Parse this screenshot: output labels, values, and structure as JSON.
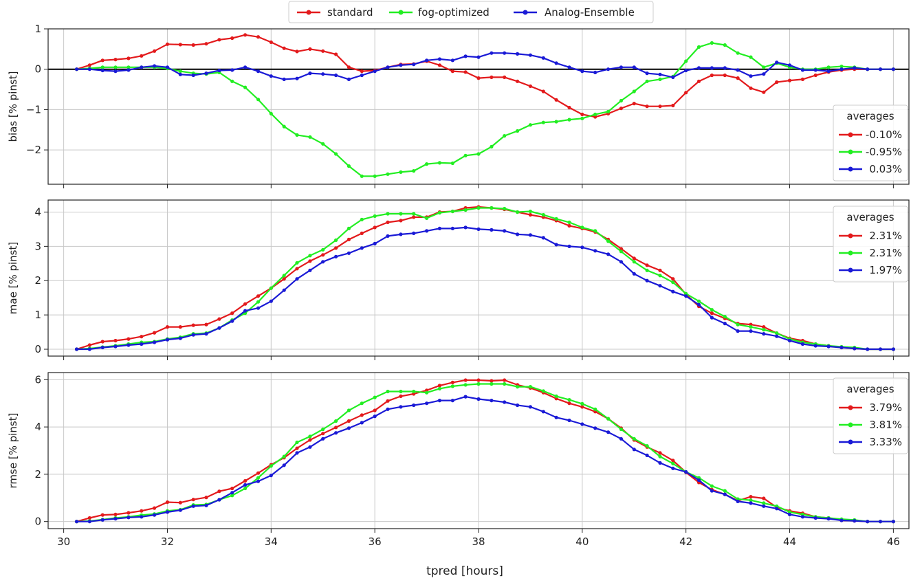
{
  "chart_data": [
    {
      "type": "line",
      "ylabel": "bias [% pinst]",
      "xlim": [
        29.7,
        46.3
      ],
      "ylim": [
        -2.85,
        1.0
      ],
      "yticks": [
        -2,
        -1,
        0,
        1
      ],
      "zero_line": true,
      "legend": {
        "title": "averages",
        "position": "lower-right",
        "entries": [
          "-0.10%",
          "-0.95%",
          "0.03%"
        ]
      },
      "x": [
        30.25,
        30.5,
        30.75,
        31.0,
        31.25,
        31.5,
        31.75,
        32.0,
        32.25,
        32.5,
        32.75,
        33.0,
        33.25,
        33.5,
        33.75,
        34.0,
        34.25,
        34.5,
        34.75,
        35.0,
        35.25,
        35.5,
        35.75,
        36.0,
        36.25,
        36.5,
        36.75,
        37.0,
        37.25,
        37.5,
        37.75,
        38.0,
        38.25,
        38.5,
        38.75,
        39.0,
        39.25,
        39.5,
        39.75,
        40.0,
        40.25,
        40.5,
        40.75,
        41.0,
        41.25,
        41.5,
        41.75,
        42.0,
        42.25,
        42.5,
        42.75,
        43.0,
        43.25,
        43.5,
        43.75,
        44.0,
        44.25,
        44.5,
        44.75,
        45.0,
        45.25,
        45.5,
        45.75,
        46.0
      ],
      "series": [
        {
          "color": "#e31a1c",
          "values": [
            0.0,
            0.1,
            0.22,
            0.24,
            0.27,
            0.33,
            0.45,
            0.62,
            0.61,
            0.6,
            0.63,
            0.73,
            0.77,
            0.85,
            0.8,
            0.67,
            0.52,
            0.44,
            0.5,
            0.45,
            0.37,
            0.05,
            -0.05,
            -0.03,
            0.05,
            0.12,
            0.13,
            0.2,
            0.1,
            -0.05,
            -0.07,
            -0.22,
            -0.2,
            -0.2,
            -0.3,
            -0.42,
            -0.55,
            -0.76,
            -0.95,
            -1.12,
            -1.18,
            -1.1,
            -0.97,
            -0.85,
            -0.92,
            -0.92,
            -0.9,
            -0.58,
            -0.3,
            -0.15,
            -0.15,
            -0.22,
            -0.47,
            -0.57,
            -0.32,
            -0.28,
            -0.25,
            -0.15,
            -0.07,
            -0.02,
            0.0,
            0.0,
            0.0,
            0.0
          ]
        },
        {
          "color": "#22ee22",
          "values": [
            0.0,
            0.02,
            0.05,
            0.05,
            0.05,
            0.05,
            0.05,
            0.02,
            -0.05,
            -0.1,
            -0.12,
            -0.08,
            -0.3,
            -0.45,
            -0.75,
            -1.1,
            -1.42,
            -1.63,
            -1.68,
            -1.85,
            -2.1,
            -2.4,
            -2.65,
            -2.65,
            -2.6,
            -2.55,
            -2.52,
            -2.35,
            -2.32,
            -2.33,
            -2.14,
            -2.1,
            -1.92,
            -1.65,
            -1.53,
            -1.38,
            -1.32,
            -1.3,
            -1.25,
            -1.22,
            -1.12,
            -1.05,
            -0.78,
            -0.55,
            -0.3,
            -0.25,
            -0.18,
            0.2,
            0.55,
            0.65,
            0.6,
            0.4,
            0.3,
            0.05,
            0.15,
            0.05,
            0.0,
            0.0,
            0.05,
            0.07,
            0.05,
            0.0,
            0.0,
            0.0
          ]
        },
        {
          "color": "#1a1ad6",
          "values": [
            0.0,
            0.0,
            -0.03,
            -0.05,
            -0.02,
            0.05,
            0.08,
            0.05,
            -0.13,
            -0.15,
            -0.1,
            -0.03,
            -0.02,
            0.05,
            -0.05,
            -0.17,
            -0.25,
            -0.23,
            -0.1,
            -0.12,
            -0.15,
            -0.25,
            -0.15,
            -0.05,
            0.05,
            0.1,
            0.12,
            0.22,
            0.25,
            0.22,
            0.32,
            0.3,
            0.4,
            0.4,
            0.38,
            0.35,
            0.28,
            0.15,
            0.05,
            -0.05,
            -0.08,
            0.0,
            0.05,
            0.05,
            -0.1,
            -0.13,
            -0.2,
            -0.03,
            0.03,
            0.03,
            0.03,
            -0.02,
            -0.17,
            -0.12,
            0.17,
            0.1,
            -0.02,
            -0.02,
            -0.05,
            0.0,
            0.03,
            0.0,
            0.0,
            0.0
          ]
        }
      ]
    },
    {
      "type": "line",
      "ylabel": "mae [% pinst]",
      "xlim": [
        29.7,
        46.3
      ],
      "ylim": [
        -0.2,
        4.35
      ],
      "yticks": [
        0,
        1,
        2,
        3,
        4
      ],
      "legend": {
        "title": "averages",
        "position": "upper-right",
        "entries": [
          "2.31%",
          "2.31%",
          "1.97%"
        ]
      },
      "x": [
        30.25,
        30.5,
        30.75,
        31.0,
        31.25,
        31.5,
        31.75,
        32.0,
        32.25,
        32.5,
        32.75,
        33.0,
        33.25,
        33.5,
        33.75,
        34.0,
        34.25,
        34.5,
        34.75,
        35.0,
        35.25,
        35.5,
        35.75,
        36.0,
        36.25,
        36.5,
        36.75,
        37.0,
        37.25,
        37.5,
        37.75,
        38.0,
        38.25,
        38.5,
        38.75,
        39.0,
        39.25,
        39.5,
        39.75,
        40.0,
        40.25,
        40.5,
        40.75,
        41.0,
        41.25,
        41.5,
        41.75,
        42.0,
        42.25,
        42.5,
        42.75,
        43.0,
        43.25,
        43.5,
        43.75,
        44.0,
        44.25,
        44.5,
        44.75,
        45.0,
        45.25,
        45.5,
        45.75,
        46.0
      ],
      "series": [
        {
          "color": "#e31a1c",
          "values": [
            0.0,
            0.12,
            0.22,
            0.25,
            0.3,
            0.37,
            0.48,
            0.65,
            0.65,
            0.7,
            0.72,
            0.88,
            1.05,
            1.32,
            1.55,
            1.78,
            2.05,
            2.35,
            2.57,
            2.75,
            2.95,
            3.2,
            3.38,
            3.55,
            3.7,
            3.75,
            3.85,
            3.85,
            4.0,
            4.02,
            4.12,
            4.15,
            4.12,
            4.08,
            4.0,
            3.92,
            3.85,
            3.75,
            3.6,
            3.52,
            3.42,
            3.2,
            2.93,
            2.65,
            2.45,
            2.3,
            2.05,
            1.6,
            1.25,
            1.05,
            0.9,
            0.75,
            0.72,
            0.65,
            0.47,
            0.32,
            0.25,
            0.15,
            0.1,
            0.05,
            0.02,
            0.0,
            0.0,
            0.0
          ]
        },
        {
          "color": "#22ee22",
          "values": [
            0.0,
            0.02,
            0.06,
            0.1,
            0.15,
            0.2,
            0.22,
            0.3,
            0.35,
            0.45,
            0.47,
            0.62,
            0.85,
            1.05,
            1.38,
            1.78,
            2.15,
            2.52,
            2.73,
            2.9,
            3.18,
            3.52,
            3.78,
            3.88,
            3.95,
            3.95,
            3.95,
            3.82,
            3.98,
            4.02,
            4.06,
            4.12,
            4.12,
            4.1,
            4.0,
            4.02,
            3.92,
            3.8,
            3.7,
            3.55,
            3.45,
            3.15,
            2.85,
            2.55,
            2.3,
            2.15,
            1.95,
            1.62,
            1.4,
            1.15,
            0.95,
            0.72,
            0.65,
            0.57,
            0.47,
            0.3,
            0.2,
            0.15,
            0.1,
            0.07,
            0.05,
            0.0,
            0.0,
            0.0
          ]
        },
        {
          "color": "#1a1ad6",
          "values": [
            0.0,
            0.0,
            0.05,
            0.08,
            0.12,
            0.15,
            0.2,
            0.28,
            0.32,
            0.42,
            0.45,
            0.62,
            0.82,
            1.12,
            1.2,
            1.4,
            1.72,
            2.05,
            2.3,
            2.55,
            2.7,
            2.8,
            2.95,
            3.08,
            3.3,
            3.35,
            3.38,
            3.45,
            3.52,
            3.52,
            3.55,
            3.5,
            3.48,
            3.45,
            3.35,
            3.33,
            3.25,
            3.05,
            3.0,
            2.97,
            2.87,
            2.77,
            2.55,
            2.2,
            2.0,
            1.85,
            1.68,
            1.55,
            1.3,
            0.92,
            0.75,
            0.53,
            0.53,
            0.45,
            0.38,
            0.25,
            0.15,
            0.1,
            0.08,
            0.05,
            0.02,
            0.0,
            0.0,
            0.0
          ]
        }
      ]
    },
    {
      "type": "line",
      "ylabel": "rmse [% pinst]",
      "xlim": [
        29.7,
        46.3
      ],
      "ylim": [
        -0.3,
        6.3
      ],
      "yticks": [
        0,
        2,
        4,
        6
      ],
      "legend": {
        "title": "averages",
        "position": "upper-right",
        "entries": [
          "3.79%",
          "3.81%",
          "3.33%"
        ]
      },
      "x": [
        30.25,
        30.5,
        30.75,
        31.0,
        31.25,
        31.5,
        31.75,
        32.0,
        32.25,
        32.5,
        32.75,
        33.0,
        33.25,
        33.5,
        33.75,
        34.0,
        34.25,
        34.5,
        34.75,
        35.0,
        35.25,
        35.5,
        35.75,
        36.0,
        36.25,
        36.5,
        36.75,
        37.0,
        37.25,
        37.5,
        37.75,
        38.0,
        38.25,
        38.5,
        38.75,
        39.0,
        39.25,
        39.5,
        39.75,
        40.0,
        40.25,
        40.5,
        40.75,
        41.0,
        41.25,
        41.5,
        41.75,
        42.0,
        42.25,
        42.5,
        42.75,
        43.0,
        43.25,
        43.5,
        43.75,
        44.0,
        44.25,
        44.5,
        44.75,
        45.0,
        45.25,
        45.5,
        45.75,
        46.0
      ],
      "series": [
        {
          "color": "#e31a1c",
          "values": [
            0.0,
            0.15,
            0.28,
            0.3,
            0.37,
            0.45,
            0.57,
            0.82,
            0.8,
            0.93,
            1.02,
            1.28,
            1.4,
            1.72,
            2.05,
            2.4,
            2.7,
            3.1,
            3.45,
            3.72,
            3.98,
            4.25,
            4.5,
            4.7,
            5.1,
            5.3,
            5.4,
            5.55,
            5.75,
            5.88,
            5.98,
            5.98,
            5.95,
            5.98,
            5.78,
            5.65,
            5.45,
            5.2,
            5.0,
            4.85,
            4.65,
            4.35,
            3.95,
            3.45,
            3.15,
            2.9,
            2.58,
            2.08,
            1.65,
            1.35,
            1.15,
            0.88,
            1.05,
            0.98,
            0.6,
            0.45,
            0.35,
            0.2,
            0.15,
            0.05,
            0.03,
            0.0,
            0.0,
            0.0
          ]
        },
        {
          "color": "#22ee22",
          "values": [
            0.0,
            0.02,
            0.08,
            0.15,
            0.2,
            0.27,
            0.32,
            0.45,
            0.5,
            0.7,
            0.72,
            0.92,
            1.1,
            1.4,
            1.85,
            2.35,
            2.75,
            3.35,
            3.6,
            3.9,
            4.25,
            4.7,
            5.0,
            5.25,
            5.5,
            5.5,
            5.5,
            5.45,
            5.62,
            5.72,
            5.78,
            5.82,
            5.82,
            5.82,
            5.7,
            5.7,
            5.52,
            5.3,
            5.15,
            4.98,
            4.75,
            4.35,
            3.9,
            3.5,
            3.2,
            2.75,
            2.45,
            2.1,
            1.85,
            1.5,
            1.3,
            0.95,
            0.9,
            0.78,
            0.65,
            0.4,
            0.3,
            0.2,
            0.15,
            0.1,
            0.07,
            0.0,
            0.0,
            0.0
          ]
        },
        {
          "color": "#1a1ad6",
          "values": [
            0.0,
            0.0,
            0.07,
            0.12,
            0.17,
            0.2,
            0.28,
            0.4,
            0.48,
            0.65,
            0.68,
            0.92,
            1.22,
            1.55,
            1.7,
            1.95,
            2.38,
            2.9,
            3.15,
            3.5,
            3.75,
            3.95,
            4.18,
            4.45,
            4.75,
            4.85,
            4.92,
            5.0,
            5.12,
            5.12,
            5.28,
            5.18,
            5.12,
            5.05,
            4.92,
            4.85,
            4.65,
            4.4,
            4.28,
            4.12,
            3.95,
            3.78,
            3.5,
            3.05,
            2.8,
            2.48,
            2.25,
            2.1,
            1.75,
            1.3,
            1.15,
            0.85,
            0.78,
            0.65,
            0.55,
            0.3,
            0.2,
            0.15,
            0.12,
            0.05,
            0.03,
            0.0,
            0.0,
            0.0
          ]
        }
      ]
    }
  ],
  "xticks": [
    30,
    32,
    34,
    36,
    38,
    40,
    42,
    44,
    46
  ],
  "xlabel": "tpred [hours]",
  "legend_top": [
    {
      "label": "standard",
      "color": "#e31a1c"
    },
    {
      "label": "fog-optimized",
      "color": "#22ee22"
    },
    {
      "label": "Analog-Ensemble",
      "color": "#1a1ad6"
    }
  ],
  "grid": true
}
